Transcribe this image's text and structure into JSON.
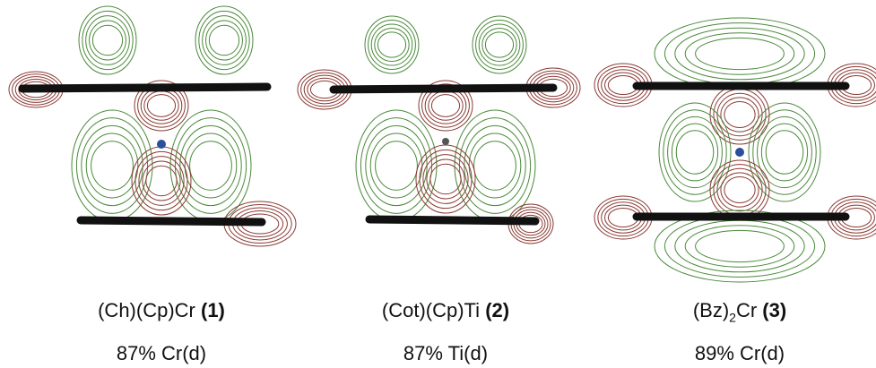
{
  "panels": [
    {
      "compound": "(Ch)(Cp)Cr",
      "number": "(1)",
      "composition": "87% Cr(d)"
    },
    {
      "compound": "(Cot)(Cp)Ti",
      "number": "(2)",
      "composition": "87% Ti(d)"
    },
    {
      "compound": "(Bz)",
      "compound_subscript": "2",
      "compound_suffix": "Cr",
      "number": "(3)",
      "composition": "89% Cr(d)"
    }
  ]
}
